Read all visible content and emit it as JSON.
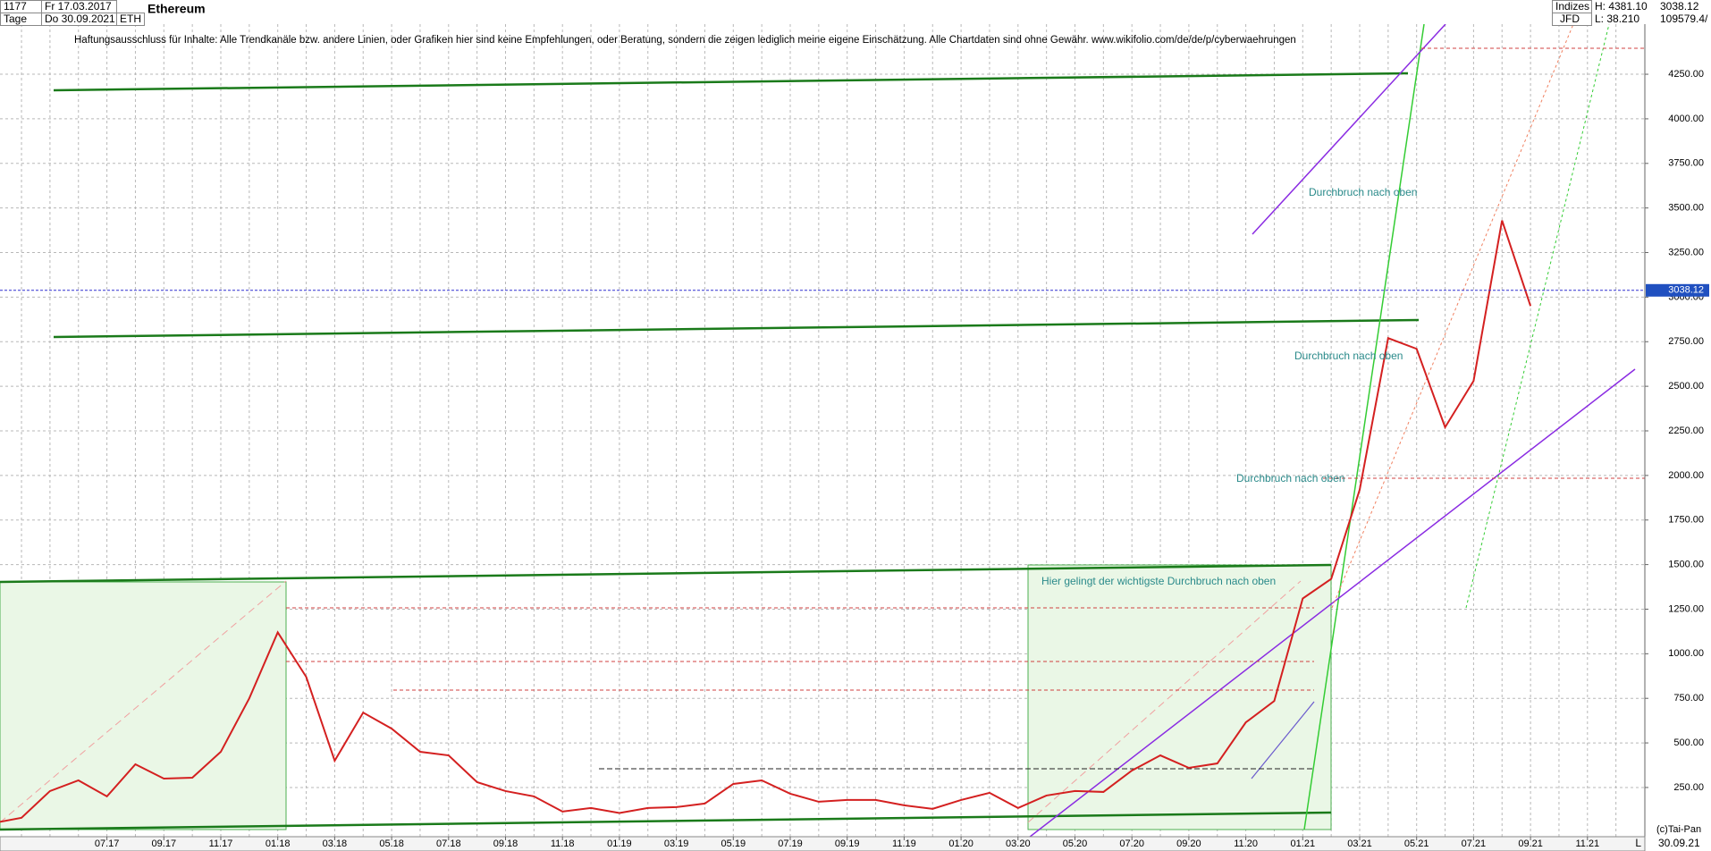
{
  "chart_data": {
    "type": "line",
    "header": {
      "count": "1177",
      "start": "Fr 17.03.2017",
      "period": "Tage",
      "end": "Do 30.09.2021",
      "symbol": "ETH",
      "name": "Ethereum",
      "market": "Indizes",
      "exchange": "JFD",
      "high": "H: 4381.10",
      "low": "L: 38.210",
      "volume": "109579.4/"
    },
    "disclaimer": "Haftungsausschluss für Inhalte: Alle Trendkanäle bzw. andere Linien, oder Grafiken hier sind keine Empfehlungen, oder Beratung, sondern die zeigen lediglich meine eigene Einschätzung. Alle Chartdaten sind ohne Gewähr.  www.wikifolio.com/de/de/p/cyberwaehrungen",
    "annotations": [
      "Durchbruch nach oben",
      "Durchbruch nach oben",
      "Durchbruch nach oben",
      "Hier gelingt der wichtigste Durchbruch nach oben"
    ],
    "copyright": "(c)Tai-Pan",
    "end_label": "30.09.21",
    "scale_mode": "L",
    "last_price": 3038.12,
    "categories": [
      null,
      null,
      null,
      null,
      "07.17",
      null,
      "09.17",
      null,
      "11.17",
      null,
      "01.18",
      null,
      "03.18",
      null,
      "05.18",
      null,
      "07.18",
      null,
      "09.18",
      null,
      "11.18",
      null,
      "01.19",
      null,
      "03.19",
      null,
      "05.19",
      null,
      "07.19",
      null,
      "09.19",
      null,
      "11.19",
      null,
      "01.20",
      null,
      "03.20",
      null,
      "05.20",
      null,
      "07.20",
      null,
      "09.20",
      null,
      "11.20",
      null,
      "01.21",
      null,
      "03.21",
      null,
      "05.21",
      null,
      "07.21",
      null,
      "09.21",
      null,
      "11.21",
      null
    ],
    "series": [
      {
        "name": "ETH",
        "color": "#d42020",
        "values": [
          50,
          80,
          230,
          290,
          200,
          380,
          300,
          305,
          450,
          750,
          1120,
          870,
          400,
          670,
          580,
          450,
          430,
          280,
          230,
          200,
          115,
          135,
          107,
          135,
          140,
          160,
          270,
          290,
          215,
          170,
          180,
          180,
          150,
          130,
          180,
          220,
          135,
          205,
          230,
          225,
          345,
          430,
          360,
          385,
          615,
          735,
          1310,
          1420,
          1920,
          2770,
          2710,
          2270,
          2530,
          3430,
          2950,
          null,
          null,
          null
        ]
      }
    ],
    "ylim": [
      -26,
      4531
    ],
    "yticks": [
      {
        "value": 250,
        "label": "250.00"
      },
      {
        "value": 500,
        "label": "500.00"
      },
      {
        "value": 750,
        "label": "750.00"
      },
      {
        "value": 1000,
        "label": "1000.00"
      },
      {
        "value": 1250,
        "label": "1250.00"
      },
      {
        "value": 1500,
        "label": "1500.00"
      },
      {
        "value": 1750,
        "label": "1750.00"
      },
      {
        "value": 2000,
        "label": "2000.00"
      },
      {
        "value": 2250,
        "label": "2250.00"
      },
      {
        "value": 2500,
        "label": "2500.00"
      },
      {
        "value": 2750,
        "label": "2750.00"
      },
      {
        "value": 3000,
        "label": "3000.00"
      },
      {
        "value": 3250,
        "label": "3250.00"
      },
      {
        "value": 3500,
        "label": "3500.00"
      },
      {
        "value": 3750,
        "label": "3750.00"
      },
      {
        "value": 4000,
        "label": "4000.00"
      },
      {
        "value": 4250,
        "label": "4250.00"
      }
    ],
    "grid": true
  }
}
